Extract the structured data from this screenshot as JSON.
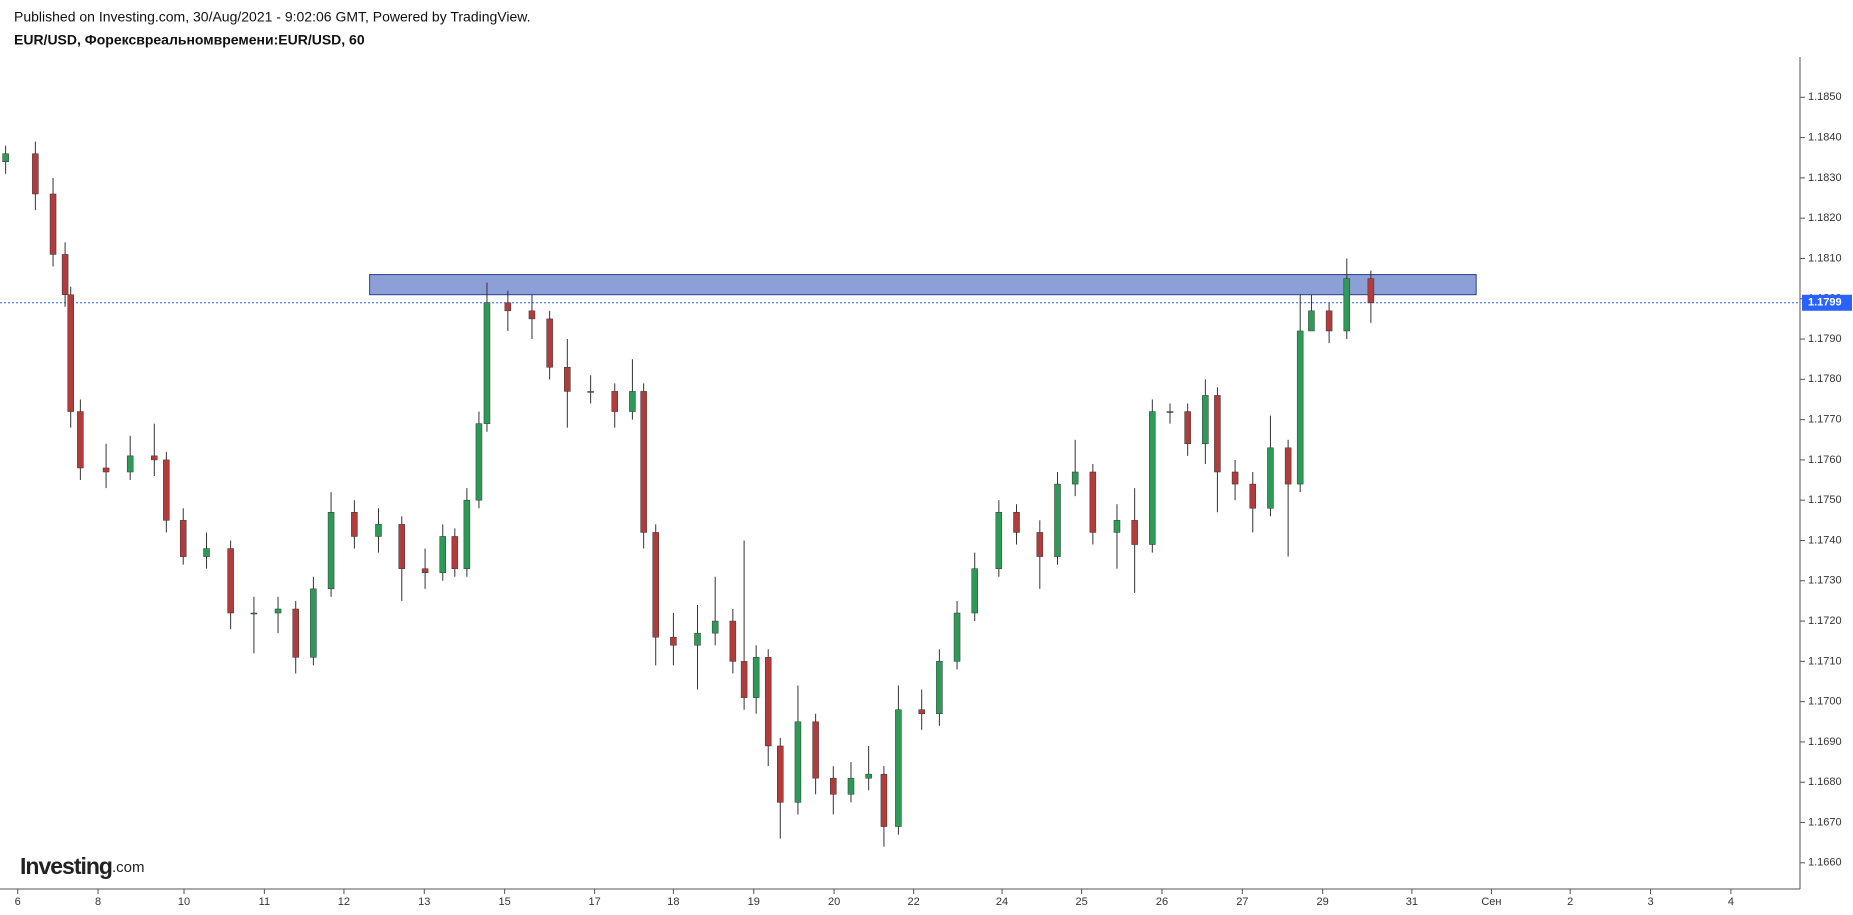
{
  "header": {
    "published": "Published on Investing.com, 30/Aug/2021 - 9:02:06 GMT, Powered by TradingView.",
    "symbol": "EUR/USD, Форексвреальномвремени:EUR/USD, 60"
  },
  "logo": {
    "brand": "Investing",
    "suffix": ".com"
  },
  "chart_data": {
    "type": "candlestick",
    "up_color": "#2d9b57",
    "down_color": "#b23b3b",
    "wick_color": "#333333",
    "x": [
      -0.15,
      0.22,
      0.44,
      0.59,
      0.66,
      0.78,
      1.1,
      1.4,
      1.7,
      1.85,
      2.06,
      2.35,
      2.65,
      2.94,
      3.24,
      3.46,
      3.68,
      3.9,
      4.19,
      4.49,
      4.78,
      5.07,
      5.29,
      5.44,
      5.59,
      5.74,
      5.84,
      6.1,
      6.4,
      6.62,
      6.84,
      7.13,
      7.43,
      7.65,
      7.79,
      7.94,
      8.16,
      8.46,
      8.68,
      8.9,
      9.04,
      9.19,
      9.34,
      9.49,
      9.71,
      9.93,
      10.15,
      10.37,
      10.59,
      10.78,
      10.96,
      11.25,
      11.47,
      11.69,
      11.91,
      12.21,
      12.43,
      12.72,
      12.94,
      13.16,
      13.38,
      13.68,
      13.9,
      14.12,
      14.34,
      14.56,
      14.78,
      14.93,
      15.15,
      15.37,
      15.59,
      15.81,
      15.96,
      16.1,
      16.32,
      16.54,
      16.84
    ],
    "open": [
      1.1834,
      1.1836,
      1.1826,
      1.1811,
      1.1801,
      1.1772,
      1.1758,
      1.1757,
      1.1761,
      1.176,
      1.1745,
      1.1736,
      1.1738,
      1.1722,
      1.1722,
      1.1723,
      1.1711,
      1.1728,
      1.1747,
      1.1741,
      1.1744,
      1.1733,
      1.1732,
      1.1741,
      1.1733,
      1.175,
      1.1769,
      1.1799,
      1.1797,
      1.1795,
      1.1783,
      1.1777,
      1.1777,
      1.1772,
      1.1777,
      1.1742,
      1.1716,
      1.1714,
      1.1717,
      1.172,
      1.171,
      1.1701,
      1.1711,
      1.1689,
      1.1675,
      1.1695,
      1.1681,
      1.1677,
      1.1681,
      1.1682,
      1.1669,
      1.1698,
      1.1697,
      1.171,
      1.1722,
      1.1733,
      1.1747,
      1.1742,
      1.1736,
      1.1754,
      1.1757,
      1.1742,
      1.1745,
      1.1739,
      1.1772,
      1.1772,
      1.1764,
      1.1776,
      1.1757,
      1.1754,
      1.1748,
      1.1763,
      1.1754,
      1.1792,
      1.1797,
      1.1792,
      1.1805
    ],
    "high": [
      1.1838,
      1.1839,
      1.183,
      1.1814,
      1.1803,
      1.1775,
      1.1764,
      1.1766,
      1.1769,
      1.1762,
      1.1748,
      1.1742,
      1.174,
      1.1726,
      1.1726,
      1.1725,
      1.1731,
      1.1752,
      1.175,
      1.1748,
      1.1746,
      1.1738,
      1.1744,
      1.1743,
      1.1753,
      1.1772,
      1.1804,
      1.1802,
      1.1801,
      1.1797,
      1.179,
      1.1781,
      1.1779,
      1.1785,
      1.1779,
      1.1744,
      1.1722,
      1.1724,
      1.1731,
      1.1723,
      1.174,
      1.1714,
      1.1713,
      1.1691,
      1.1704,
      1.1697,
      1.1684,
      1.1685,
      1.1689,
      1.1684,
      1.1704,
      1.1703,
      1.1713,
      1.1725,
      1.1737,
      1.175,
      1.1749,
      1.1745,
      1.1757,
      1.1765,
      1.1759,
      1.1749,
      1.1753,
      1.1775,
      1.1774,
      1.1774,
      1.178,
      1.1778,
      1.176,
      1.1757,
      1.1771,
      1.1765,
      1.1801,
      1.1801,
      1.1799,
      1.181,
      1.1807
    ],
    "low": [
      1.1831,
      1.1822,
      1.1808,
      1.1798,
      1.1768,
      1.1755,
      1.1753,
      1.1755,
      1.1756,
      1.1742,
      1.1734,
      1.1733,
      1.1718,
      1.1712,
      1.1717,
      1.1707,
      1.1709,
      1.1726,
      1.1738,
      1.1737,
      1.1725,
      1.1728,
      1.173,
      1.1731,
      1.1731,
      1.1748,
      1.1767,
      1.1792,
      1.179,
      1.178,
      1.1768,
      1.1774,
      1.1768,
      1.177,
      1.1738,
      1.1709,
      1.1709,
      1.1703,
      1.1714,
      1.1707,
      1.1698,
      1.1697,
      1.1684,
      1.1666,
      1.1672,
      1.1677,
      1.1672,
      1.1675,
      1.1678,
      1.1664,
      1.1667,
      1.1693,
      1.1694,
      1.1708,
      1.172,
      1.1731,
      1.1739,
      1.1728,
      1.1734,
      1.1751,
      1.1739,
      1.1733,
      1.1727,
      1.1737,
      1.1769,
      1.1761,
      1.1759,
      1.1747,
      1.175,
      1.1742,
      1.1746,
      1.1736,
      1.1752,
      1.1794,
      1.1789,
      1.179,
      1.1794
    ],
    "close": [
      1.1836,
      1.1826,
      1.1811,
      1.1801,
      1.1772,
      1.1758,
      1.1757,
      1.1761,
      1.176,
      1.1745,
      1.1736,
      1.1738,
      1.1722,
      1.1722,
      1.1723,
      1.1711,
      1.1728,
      1.1747,
      1.1741,
      1.1744,
      1.1733,
      1.1732,
      1.1741,
      1.1733,
      1.175,
      1.1769,
      1.1799,
      1.1797,
      1.1795,
      1.1783,
      1.1777,
      1.1777,
      1.1772,
      1.1777,
      1.1742,
      1.1716,
      1.1714,
      1.1717,
      1.172,
      1.171,
      1.1701,
      1.1711,
      1.1689,
      1.1675,
      1.1695,
      1.1681,
      1.1677,
      1.1681,
      1.1682,
      1.1669,
      1.1698,
      1.1697,
      1.171,
      1.1722,
      1.1733,
      1.1747,
      1.1742,
      1.1736,
      1.1754,
      1.1757,
      1.1742,
      1.1745,
      1.1739,
      1.1772,
      1.1772,
      1.1764,
      1.1776,
      1.1757,
      1.1754,
      1.1748,
      1.1763,
      1.1754,
      1.1792,
      1.1797,
      1.1792,
      1.1805,
      1.1799
    ],
    "last_price": 1.1799,
    "last_price_color": "#2962ff",
    "zone": {
      "x": [
        4.38,
        18.15
      ],
      "y": [
        1.1801,
        1.1806
      ],
      "color": "#8c9fd6",
      "edge_color": "#2a3f8f"
    },
    "xlim": [
      -0.22,
      22.18
    ],
    "xticks": [
      {
        "value": 0,
        "label": "6"
      },
      {
        "value": 1,
        "label": "8"
      },
      {
        "value": 2.07,
        "label": "10"
      },
      {
        "value": 3.07,
        "label": "11"
      },
      {
        "value": 4.06,
        "label": "12"
      },
      {
        "value": 5.06,
        "label": "13"
      },
      {
        "value": 6.06,
        "label": "15"
      },
      {
        "value": 7.18,
        "label": "17"
      },
      {
        "value": 8.16,
        "label": "18"
      },
      {
        "value": 9.16,
        "label": "19"
      },
      {
        "value": 10.16,
        "label": "20"
      },
      {
        "value": 11.15,
        "label": "22"
      },
      {
        "value": 12.25,
        "label": "24"
      },
      {
        "value": 13.24,
        "label": "25"
      },
      {
        "value": 14.24,
        "label": "26"
      },
      {
        "value": 15.24,
        "label": "27"
      },
      {
        "value": 16.24,
        "label": "29"
      },
      {
        "value": 17.35,
        "label": "31"
      },
      {
        "value": 18.34,
        "label": "Сен"
      },
      {
        "value": 19.32,
        "label": "2"
      },
      {
        "value": 20.32,
        "label": "3"
      },
      {
        "value": 21.32,
        "label": "4"
      }
    ],
    "ylim": [
      1.16535,
      1.186
    ],
    "yticks": [
      {
        "value": 1.166,
        "label": "1.1660"
      },
      {
        "value": 1.167,
        "label": "1.1670"
      },
      {
        "value": 1.168,
        "label": "1.1680"
      },
      {
        "value": 1.169,
        "label": "1.1690"
      },
      {
        "value": 1.17,
        "label": "1.1700"
      },
      {
        "value": 1.171,
        "label": "1.1710"
      },
      {
        "value": 1.172,
        "label": "1.1720"
      },
      {
        "value": 1.173,
        "label": "1.1730"
      },
      {
        "value": 1.174,
        "label": "1.1740"
      },
      {
        "value": 1.175,
        "label": "1.1750"
      },
      {
        "value": 1.176,
        "label": "1.1760"
      },
      {
        "value": 1.177,
        "label": "1.1770"
      },
      {
        "value": 1.178,
        "label": "1.1780"
      },
      {
        "value": 1.179,
        "label": "1.1790"
      },
      {
        "value": 1.18,
        "label": "1.1800"
      },
      {
        "value": 1.181,
        "label": "1.1810"
      },
      {
        "value": 1.182,
        "label": "1.1820"
      },
      {
        "value": 1.183,
        "label": "1.1830"
      },
      {
        "value": 1.184,
        "label": "1.1840"
      },
      {
        "value": 1.185,
        "label": "1.1850"
      }
    ]
  }
}
